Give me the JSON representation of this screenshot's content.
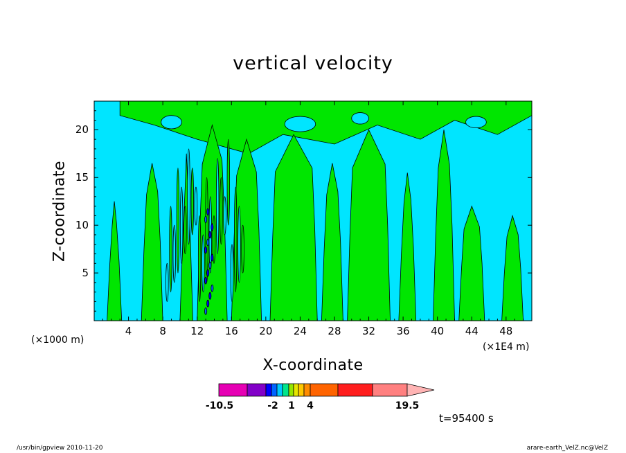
{
  "chart_data": {
    "type": "contour",
    "title": "vertical velocity",
    "xlabel": "X-coordinate",
    "ylabel": "Z-coordinate",
    "x_unit": "(×1000 m)",
    "x_scale": "(×1E4 m)",
    "xlim": [
      0,
      51
    ],
    "ylim": [
      0,
      23
    ],
    "xticks": [
      4,
      8,
      12,
      16,
      20,
      24,
      28,
      32,
      36,
      40,
      44,
      48
    ],
    "yticks": [
      5,
      10,
      15,
      20
    ],
    "fields": [
      {
        "label": "cyan",
        "color": "#00e5ff"
      },
      {
        "label": "green",
        "color": "#00e600"
      }
    ],
    "colorbar": {
      "colors": [
        "#e600b4",
        "#8200c8",
        "#0000ff",
        "#0064ff",
        "#00c8ff",
        "#00e68c",
        "#96e600",
        "#e6e600",
        "#ffc800",
        "#ff8c00",
        "#ff6400",
        "#ff1e1e",
        "#ff8080",
        "#ffb4b4"
      ],
      "tick_labels": [
        {
          "label": "-10.5",
          "value": -10.5
        },
        {
          "label": "-2",
          "value": -2
        },
        {
          "label": "1",
          "value": 1
        },
        {
          "label": "4",
          "value": 4
        },
        {
          "label": "19.5",
          "value": 19.5
        }
      ]
    },
    "time_label": "t=95400 s"
  },
  "footer": {
    "left": "/usr/bin/gpview   2010-11-20",
    "right": "arare-earth_VelZ.nc@VelZ"
  }
}
